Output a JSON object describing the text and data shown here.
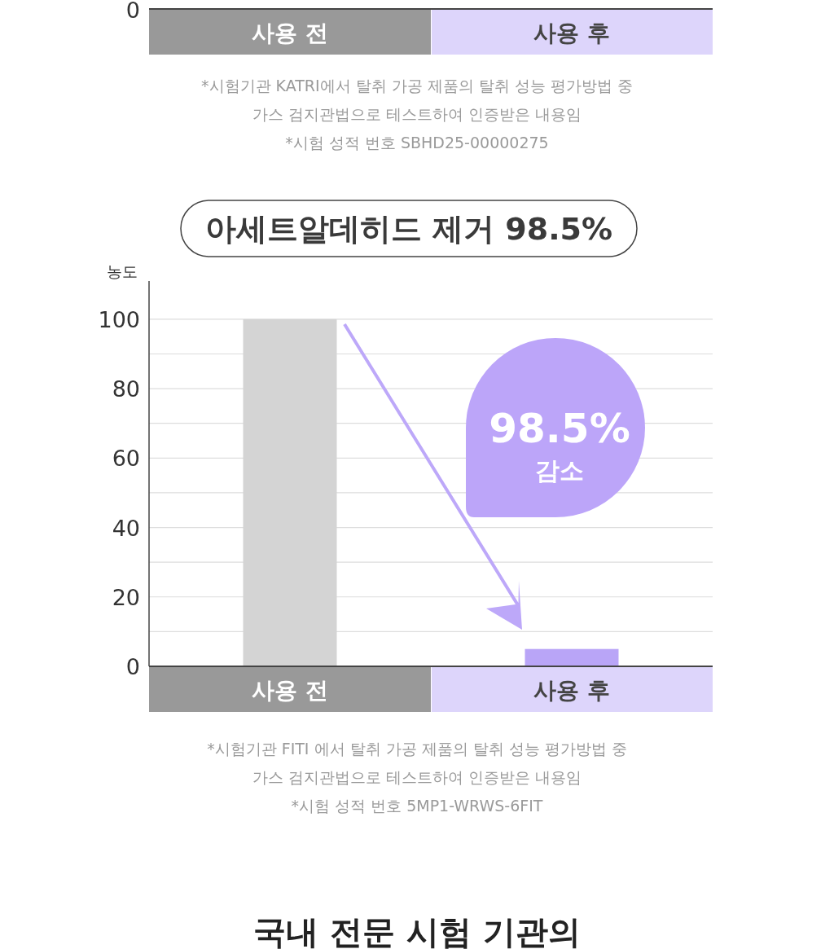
{
  "chart_data": [
    {
      "type": "other",
      "categories": [
        "사용 전",
        "사용 후"
      ],
      "annotations": [
        "0",
        "*시험기관 KATRI에서 탈취 가공 제품의 탈취 성능 평가방법 중",
        "가스 검지관법으로 테스트하여 인증받은 내용임",
        "*시험 성적 번호 SBHD25-00000275"
      ]
    },
    {
      "type": "bar",
      "title": "아세트알데히드 제거 98.5%",
      "ylabel": "농도",
      "categories": [
        "사용 전",
        "사용 후"
      ],
      "values": [
        100,
        5
      ],
      "colors": [
        "#d4d4d4",
        "#b9a5f7"
      ],
      "ylim": [
        0,
        111
      ],
      "yticks": [
        0,
        {
          "value": 10,
          "label": null
        },
        20,
        {
          "value": 30,
          "label": null
        },
        40,
        {
          "value": 50,
          "label": null
        },
        60,
        {
          "value": 70,
          "label": null
        },
        80,
        {
          "value": 90,
          "label": null
        },
        100
      ],
      "grid": "y",
      "annotations": [
        "98.5%",
        "감소",
        "*시험기관 FITI 에서 탈취 가공 제품의 탈취 성능 평가방법 중",
        "가스 검지관법으로 테스트하여 인증받은 내용임",
        "*시험 성적 번호 5MP1-WRWS-6FIT",
        "국내 전문 시험 기관의"
      ]
    }
  ]
}
